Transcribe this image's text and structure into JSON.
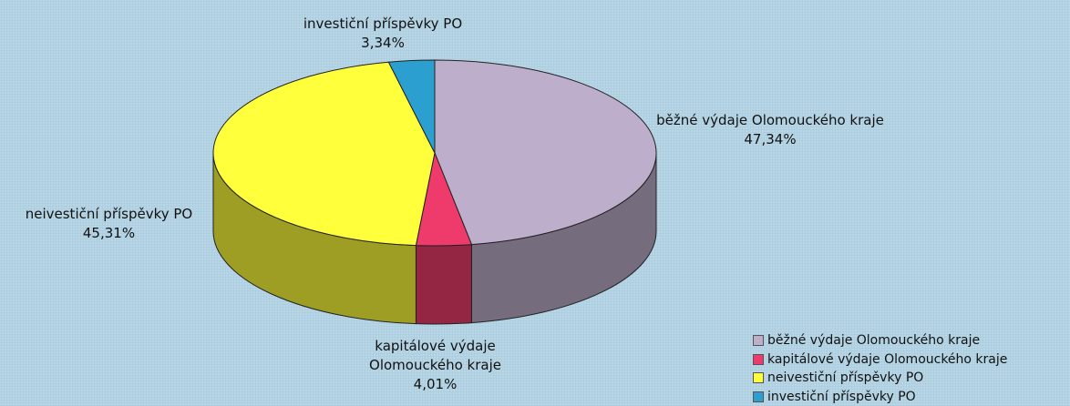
{
  "chart_data": {
    "type": "pie3d",
    "categories": [
      "běžné výdaje Olomouckého kraje",
      "kapitálové výdaje Olomouckého kraje",
      "neivestiční příspěvky PO",
      "investiční příspěvky PO"
    ],
    "values": [
      47.34,
      4.01,
      45.31,
      3.34
    ],
    "value_labels": [
      "47,34%",
      "4,01%",
      "45,31%",
      "3,34%"
    ],
    "colors": [
      "#bdaecb",
      "#ee3b6c",
      "#ffff3c",
      "#2b9fcf"
    ],
    "legend": "bottom-right"
  }
}
